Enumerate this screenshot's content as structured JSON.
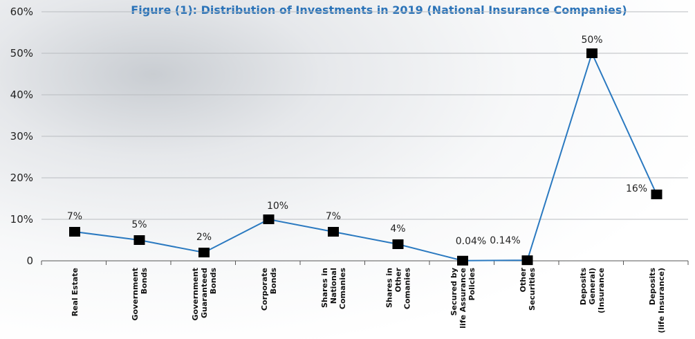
{
  "chart_data": {
    "type": "line",
    "title": "Figure (1): Distribution of Investments in 2019 (National Insurance Companies)",
    "categories": [
      [
        "Real Estate"
      ],
      [
        "Government",
        "Bonds"
      ],
      [
        "Government",
        "Guaranteed",
        "Bonds"
      ],
      [
        "Corporate",
        "Bonds"
      ],
      [
        "Shares in",
        "National",
        "Comanies"
      ],
      [
        "Shares in",
        "Other",
        "Comanies"
      ],
      [
        "Secured by",
        "life Assurance",
        "Policies"
      ],
      [
        "Other",
        "Securities"
      ],
      [
        "Deposits",
        "General)",
        "(Insurance"
      ],
      [
        "Deposits",
        "(life Insurance)"
      ]
    ],
    "values": [
      7,
      5,
      2,
      10,
      7,
      4,
      0.04,
      0.14,
      50,
      16
    ],
    "data_labels": [
      "7%",
      "5%",
      "2%",
      "10%",
      "7%",
      "4%",
      "0.04%",
      "0.14%",
      "50%",
      "16%"
    ],
    "yticks": [
      "0",
      "10%",
      "20%",
      "30%",
      "40%",
      "50%",
      "60%"
    ],
    "ylim": [
      0,
      60
    ],
    "grid": true,
    "colors": {
      "line": "#2a79c0",
      "marker": "#000000",
      "title": "#2b73b8"
    }
  }
}
